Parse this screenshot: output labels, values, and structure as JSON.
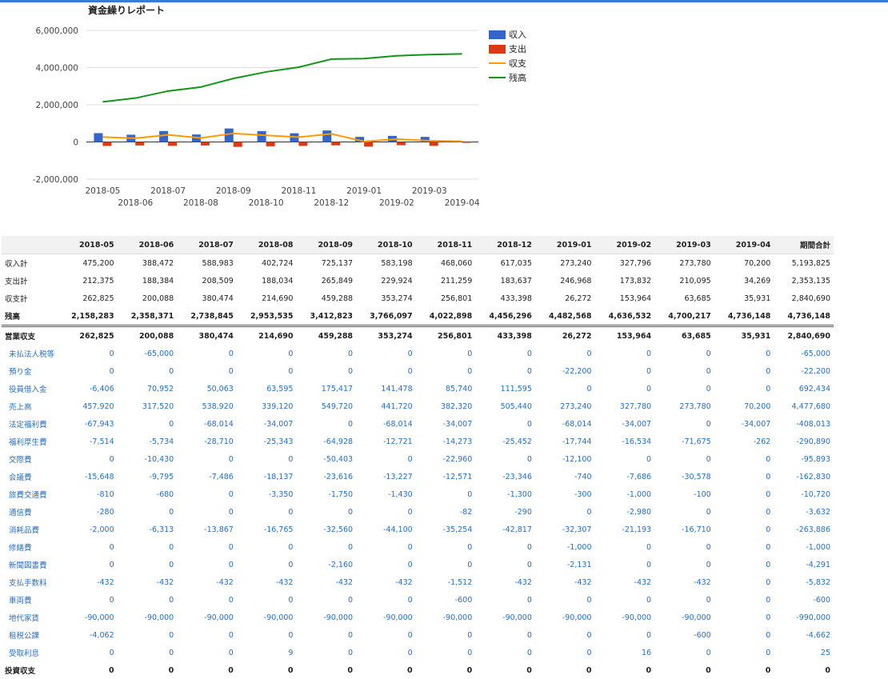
{
  "report_title": "資金繰りレポート",
  "chart_data": {
    "type": "bar",
    "title": "資金繰りレポート",
    "categories": [
      "2018-05",
      "2018-06",
      "2018-07",
      "2018-08",
      "2018-09",
      "2018-10",
      "2018-11",
      "2018-12",
      "2019-01",
      "2019-02",
      "2019-03",
      "2019-04"
    ],
    "series": [
      {
        "name": "収入",
        "type": "bar",
        "color": "#3366cc",
        "values": [
          475200,
          388472,
          588983,
          402724,
          725137,
          583198,
          468060,
          617035,
          273240,
          327796,
          273780,
          70200
        ]
      },
      {
        "name": "支出",
        "type": "bar",
        "color": "#dc3912",
        "values": [
          -212375,
          -188384,
          -208509,
          -188034,
          -265849,
          -229924,
          -211259,
          -183637,
          -246968,
          -173832,
          -210095,
          -34269
        ]
      },
      {
        "name": "収支",
        "type": "line",
        "color": "#ff9900",
        "values": [
          262825,
          200088,
          380474,
          214690,
          459288,
          353274,
          256801,
          433398,
          26272,
          153964,
          63685,
          35931
        ]
      },
      {
        "name": "残高",
        "type": "line",
        "color": "#109618",
        "values": [
          2158283,
          2358371,
          2738845,
          2953535,
          3412823,
          3766097,
          4022898,
          4456296,
          4482568,
          4636532,
          4700217,
          4736148
        ]
      }
    ],
    "ylim": [
      -2000000,
      6000000
    ],
    "yticks": [
      6000000,
      4000000,
      2000000,
      0,
      -2000000
    ],
    "ytick_labels": [
      "6,000,000",
      "4,000,000",
      "2,000,000",
      "0",
      "-2,000,000"
    ],
    "grid": true,
    "legend_position": "right"
  },
  "table": {
    "headers": [
      "",
      "2018-05",
      "2018-06",
      "2018-07",
      "2018-08",
      "2018-09",
      "2018-10",
      "2018-11",
      "2018-12",
      "2019-01",
      "2019-02",
      "2019-03",
      "2019-04",
      "期間合計"
    ],
    "rows": [
      {
        "style": "summary",
        "label": "収入計",
        "values": [
          "475,200",
          "388,472",
          "588,983",
          "402,724",
          "725,137",
          "583,198",
          "468,060",
          "617,035",
          "273,240",
          "327,796",
          "273,780",
          "70,200",
          "5,193,825"
        ]
      },
      {
        "style": "summary",
        "label": "支出計",
        "values": [
          "212,375",
          "188,384",
          "208,509",
          "188,034",
          "265,849",
          "229,924",
          "211,259",
          "183,637",
          "246,968",
          "173,832",
          "210,095",
          "34,269",
          "2,353,135"
        ]
      },
      {
        "style": "summary",
        "label": "収支計",
        "values": [
          "262,825",
          "200,088",
          "380,474",
          "214,690",
          "459,288",
          "353,274",
          "256,801",
          "433,398",
          "26,272",
          "153,964",
          "63,685",
          "35,931",
          "2,840,690"
        ]
      },
      {
        "style": "total",
        "label": "残高",
        "values": [
          "2,158,283",
          "2,358,371",
          "2,738,845",
          "2,953,535",
          "3,412,823",
          "3,766,097",
          "4,022,898",
          "4,456,296",
          "4,482,568",
          "4,636,532",
          "4,700,217",
          "4,736,148",
          "4,736,148"
        ]
      },
      {
        "style": "section",
        "label": "営業収支",
        "values": [
          "262,825",
          "200,088",
          "380,474",
          "214,690",
          "459,288",
          "353,274",
          "256,801",
          "433,398",
          "26,272",
          "153,964",
          "63,685",
          "35,931",
          "2,840,690"
        ]
      },
      {
        "style": "item",
        "label": "未払法人税等",
        "values": [
          "0",
          "-65,000",
          "0",
          "0",
          "0",
          "0",
          "0",
          "0",
          "0",
          "0",
          "0",
          "0",
          "-65,000"
        ]
      },
      {
        "style": "item",
        "label": "預り金",
        "values": [
          "0",
          "0",
          "0",
          "0",
          "0",
          "0",
          "0",
          "0",
          "-22,200",
          "0",
          "0",
          "0",
          "-22,200"
        ]
      },
      {
        "style": "item",
        "label": "役員借入金",
        "values": [
          "-6,406",
          "70,952",
          "50,063",
          "63,595",
          "175,417",
          "141,478",
          "85,740",
          "111,595",
          "0",
          "0",
          "0",
          "0",
          "692,434"
        ]
      },
      {
        "style": "item",
        "label": "売上高",
        "values": [
          "457,920",
          "317,520",
          "538,920",
          "339,120",
          "549,720",
          "441,720",
          "382,320",
          "505,440",
          "273,240",
          "327,780",
          "273,780",
          "70,200",
          "4,477,680"
        ]
      },
      {
        "style": "item",
        "label": "法定福利費",
        "values": [
          "-67,943",
          "0",
          "-68,014",
          "-34,007",
          "0",
          "-68,014",
          "-34,007",
          "0",
          "-68,014",
          "-34,007",
          "0",
          "-34,007",
          "-408,013"
        ]
      },
      {
        "style": "item",
        "label": "福利厚生費",
        "values": [
          "-7,514",
          "-5,734",
          "-28,710",
          "-25,343",
          "-64,928",
          "-12,721",
          "-14,273",
          "-25,452",
          "-17,744",
          "-16,534",
          "-71,675",
          "-262",
          "-290,890"
        ]
      },
      {
        "style": "item",
        "label": "交際費",
        "values": [
          "0",
          "-10,430",
          "0",
          "0",
          "-50,403",
          "0",
          "-22,960",
          "0",
          "-12,100",
          "0",
          "0",
          "0",
          "-95,893"
        ]
      },
      {
        "style": "item",
        "label": "会議費",
        "values": [
          "-15,648",
          "-9,795",
          "-7,486",
          "-18,137",
          "-23,616",
          "-13,227",
          "-12,571",
          "-23,346",
          "-740",
          "-7,686",
          "-30,578",
          "0",
          "-162,830"
        ]
      },
      {
        "style": "item",
        "label": "旅費交通費",
        "values": [
          "-810",
          "-680",
          "0",
          "-3,350",
          "-1,750",
          "-1,430",
          "0",
          "-1,300",
          "-300",
          "-1,000",
          "-100",
          "0",
          "-10,720"
        ]
      },
      {
        "style": "item",
        "label": "通信費",
        "values": [
          "-280",
          "0",
          "0",
          "0",
          "0",
          "0",
          "-82",
          "-290",
          "0",
          "-2,980",
          "0",
          "0",
          "-3,632"
        ]
      },
      {
        "style": "item",
        "label": "消耗品費",
        "values": [
          "-2,000",
          "-6,313",
          "-13,867",
          "-16,765",
          "-32,560",
          "-44,100",
          "-35,254",
          "-42,817",
          "-32,307",
          "-21,193",
          "-16,710",
          "0",
          "-263,886"
        ]
      },
      {
        "style": "item",
        "label": "修繕費",
        "values": [
          "0",
          "0",
          "0",
          "0",
          "0",
          "0",
          "0",
          "0",
          "-1,000",
          "0",
          "0",
          "0",
          "-1,000"
        ]
      },
      {
        "style": "item",
        "label": "新聞図書費",
        "values": [
          "0",
          "0",
          "0",
          "0",
          "-2,160",
          "0",
          "0",
          "0",
          "-2,131",
          "0",
          "0",
          "0",
          "-4,291"
        ]
      },
      {
        "style": "item",
        "label": "支払手数料",
        "values": [
          "-432",
          "-432",
          "-432",
          "-432",
          "-432",
          "-432",
          "-1,512",
          "-432",
          "-432",
          "-432",
          "-432",
          "0",
          "-5,832"
        ]
      },
      {
        "style": "item",
        "label": "車両費",
        "values": [
          "0",
          "0",
          "0",
          "0",
          "0",
          "0",
          "-600",
          "0",
          "0",
          "0",
          "0",
          "0",
          "-600"
        ]
      },
      {
        "style": "item",
        "label": "地代家賃",
        "values": [
          "-90,000",
          "-90,000",
          "-90,000",
          "-90,000",
          "-90,000",
          "-90,000",
          "-90,000",
          "-90,000",
          "-90,000",
          "-90,000",
          "-90,000",
          "0",
          "-990,000"
        ]
      },
      {
        "style": "item",
        "label": "租税公課",
        "values": [
          "-4,062",
          "0",
          "0",
          "0",
          "0",
          "0",
          "0",
          "0",
          "0",
          "0",
          "-600",
          "0",
          "-4,662"
        ]
      },
      {
        "style": "item",
        "label": "受取利息",
        "values": [
          "0",
          "0",
          "0",
          "9",
          "0",
          "0",
          "0",
          "0",
          "0",
          "16",
          "0",
          "0",
          "25"
        ]
      },
      {
        "style": "section",
        "label": "投資収支",
        "values": [
          "0",
          "0",
          "0",
          "0",
          "0",
          "0",
          "0",
          "0",
          "0",
          "0",
          "0",
          "0",
          "0"
        ]
      }
    ]
  }
}
